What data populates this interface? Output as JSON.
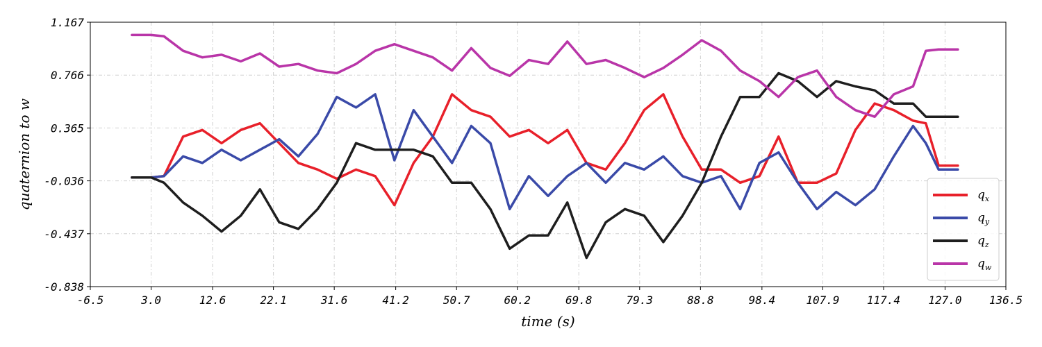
{
  "chart_data": {
    "type": "line",
    "title": "",
    "xlabel": "time (s)",
    "ylabel": "quaternion to w",
    "xlim": [
      -6.5,
      136.5
    ],
    "ylim": [
      -0.838,
      1.167
    ],
    "xticks": [
      "-6.5",
      "3.0",
      "12.6",
      "22.1",
      "31.6",
      "41.2",
      "50.7",
      "60.2",
      "69.8",
      "79.3",
      "88.8",
      "98.4",
      "107.9",
      "117.4",
      "127.0",
      "136.5"
    ],
    "yticks": [
      "1.167",
      "0.766",
      "0.365",
      "-0.036",
      "-0.437",
      "-0.838"
    ],
    "grid": true,
    "legend_position": "bottom-right",
    "x": [
      0,
      3,
      5,
      8,
      11,
      14,
      17,
      20,
      23,
      26,
      29,
      32,
      35,
      38,
      41,
      44,
      47,
      50,
      53,
      56,
      59,
      62,
      65,
      68,
      71,
      74,
      77,
      80,
      83,
      86,
      89,
      92,
      95,
      98,
      101,
      104,
      107,
      110,
      113,
      116,
      119,
      122,
      124,
      126,
      129
    ],
    "series": [
      {
        "name": "q",
        "sub": "x",
        "color": "#e8202a",
        "values": [
          -0.01,
          -0.01,
          0.0,
          0.3,
          0.35,
          0.25,
          0.35,
          0.4,
          0.25,
          0.1,
          0.05,
          -0.02,
          0.05,
          0.0,
          -0.22,
          0.1,
          0.3,
          0.62,
          0.5,
          0.45,
          0.3,
          0.35,
          0.25,
          0.35,
          0.1,
          0.05,
          0.25,
          0.5,
          0.62,
          0.3,
          0.05,
          0.05,
          -0.05,
          0.0,
          0.3,
          -0.05,
          -0.05,
          0.02,
          0.35,
          0.55,
          0.5,
          0.42,
          0.4,
          0.08,
          0.08
        ]
      },
      {
        "name": "q",
        "sub": "y",
        "color": "#3a4aa8",
        "values": [
          -0.01,
          -0.01,
          0.0,
          0.15,
          0.1,
          0.2,
          0.12,
          0.2,
          0.28,
          0.15,
          0.32,
          0.6,
          0.52,
          0.62,
          0.12,
          0.5,
          0.3,
          0.1,
          0.38,
          0.25,
          -0.25,
          0.0,
          -0.15,
          0.0,
          0.1,
          -0.05,
          0.1,
          0.05,
          0.15,
          0.0,
          -0.05,
          0.0,
          -0.25,
          0.1,
          0.18,
          -0.05,
          -0.25,
          -0.12,
          -0.22,
          -0.1,
          0.15,
          0.38,
          0.25,
          0.05,
          0.05
        ]
      },
      {
        "name": "q",
        "sub": "z",
        "color": "#1e1e1e",
        "values": [
          -0.01,
          -0.01,
          -0.05,
          -0.2,
          -0.3,
          -0.42,
          -0.3,
          -0.1,
          -0.35,
          -0.4,
          -0.25,
          -0.05,
          0.25,
          0.2,
          0.2,
          0.2,
          0.15,
          -0.05,
          -0.05,
          -0.25,
          -0.55,
          -0.45,
          -0.45,
          -0.2,
          -0.62,
          -0.35,
          -0.25,
          -0.3,
          -0.5,
          -0.3,
          -0.05,
          0.3,
          0.6,
          0.6,
          0.78,
          0.72,
          0.6,
          0.72,
          0.68,
          0.65,
          0.55,
          0.55,
          0.45,
          0.45,
          0.45
        ]
      },
      {
        "name": "q",
        "sub": "w",
        "color": "#b935a8",
        "values": [
          1.07,
          1.07,
          1.06,
          0.95,
          0.9,
          0.92,
          0.87,
          0.93,
          0.83,
          0.85,
          0.8,
          0.78,
          0.85,
          0.95,
          1.0,
          0.95,
          0.9,
          0.8,
          0.97,
          0.82,
          0.76,
          0.88,
          0.85,
          1.02,
          0.85,
          0.88,
          0.82,
          0.75,
          0.82,
          0.92,
          1.03,
          0.95,
          0.8,
          0.72,
          0.6,
          0.75,
          0.8,
          0.6,
          0.5,
          0.45,
          0.62,
          0.68,
          0.95,
          0.96,
          0.96
        ]
      }
    ]
  }
}
